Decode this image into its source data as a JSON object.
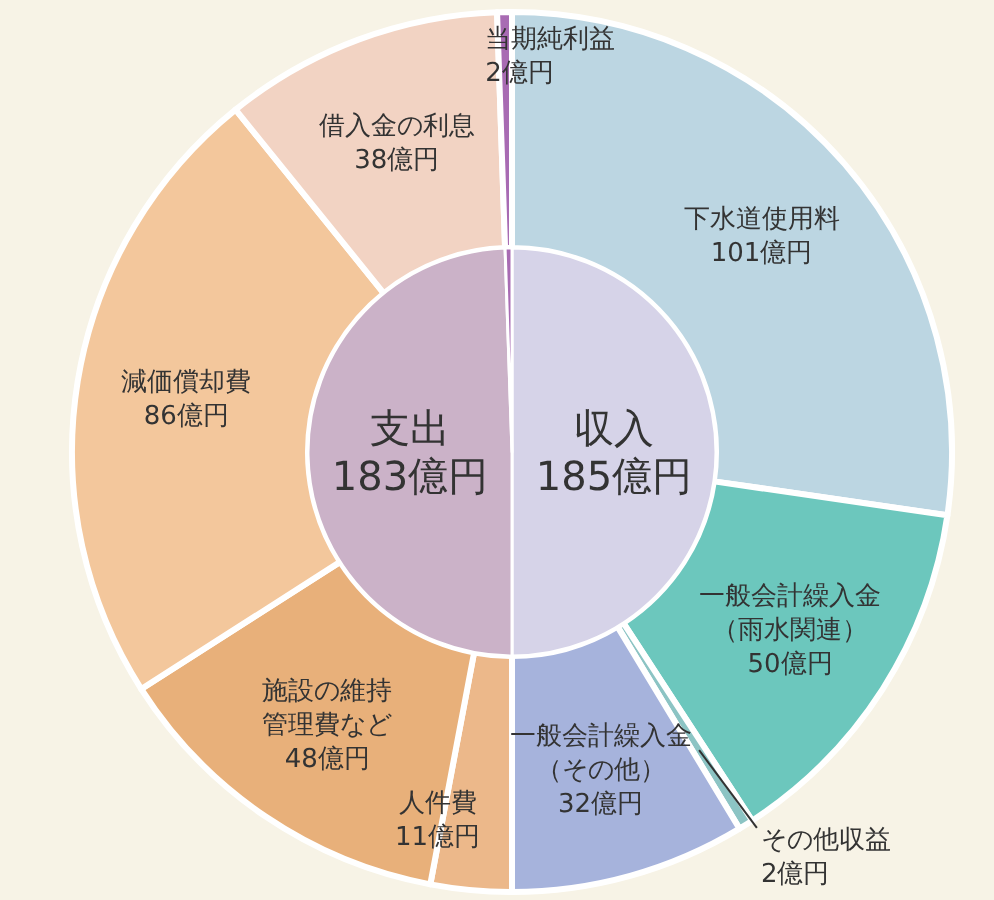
{
  "chart_data": [
    {
      "type": "donut",
      "categories": [
        "下水道使用料",
        "一般会計繰入金（雨水関連）",
        "その他収益",
        "一般会計繰入金（その他）",
        "人件費",
        "施設の維持管理費など",
        "減価償却費",
        "借入金の利息",
        "当期純利益"
      ],
      "values": [
        101,
        50,
        2,
        32,
        11,
        48,
        86,
        38,
        2
      ],
      "value_labels": [
        "101億円",
        "50億円",
        "2億円",
        "32億円",
        "11億円",
        "48億円",
        "86億円",
        "38億円",
        "2億円"
      ],
      "colors": [
        "#bcd6e2",
        "#6cc7bd",
        "#8cc4c4",
        "#a6b3dc",
        "#ecb88a",
        "#e8b07a",
        "#f3c79c",
        "#f2d3c3",
        "#a86bb3"
      ]
    },
    {
      "type": "pie",
      "categories": [
        "収入",
        "支出",
        null
      ],
      "values": [
        185,
        183,
        2
      ],
      "value_labels": [
        "185億円",
        "183億円",
        null
      ],
      "colors": [
        "#d6d3e8",
        "#cbb2c8",
        "#a86bb3"
      ]
    }
  ]
}
